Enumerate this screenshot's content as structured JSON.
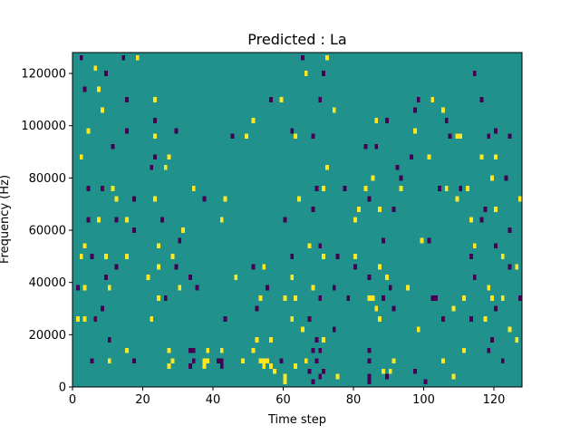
{
  "chart_data": {
    "type": "heatmap",
    "title": "Predicted : La",
    "xlabel": "Time step",
    "ylabel": "Frequency (Hz)",
    "xlim": [
      0,
      128
    ],
    "ylim": [
      0,
      128000
    ],
    "x_ticks": [
      0,
      20,
      40,
      60,
      80,
      100,
      120
    ],
    "y_ticks": [
      0,
      20000,
      40000,
      60000,
      80000,
      100000,
      120000
    ],
    "x_tick_labels": [
      "0",
      "20",
      "40",
      "60",
      "80",
      "100",
      "120"
    ],
    "y_tick_labels": [
      "0",
      "20000",
      "40000",
      "60000",
      "80000",
      "100000",
      "120000"
    ],
    "grid": false,
    "colormap": "viridis",
    "colors": {
      "background": "#21918c",
      "high": "#fde725",
      "low": "#440154"
    },
    "cell_width": 1,
    "cell_height": 2000,
    "value_levels": {
      "low": -1,
      "background": 0,
      "high": 1
    },
    "cells": [
      {
        "x": 2,
        "y": 125000,
        "v": -1
      },
      {
        "x": 14,
        "y": 125000,
        "v": -1
      },
      {
        "x": 18,
        "y": 125000,
        "v": 1
      },
      {
        "x": 65,
        "y": 125000,
        "v": -1
      },
      {
        "x": 72,
        "y": 125000,
        "v": 1
      },
      {
        "x": 6,
        "y": 121000,
        "v": 1
      },
      {
        "x": 9,
        "y": 119000,
        "v": -1
      },
      {
        "x": 66,
        "y": 119000,
        "v": 1
      },
      {
        "x": 71,
        "y": 119000,
        "v": -1
      },
      {
        "x": 114,
        "y": 119000,
        "v": -1
      },
      {
        "x": 3,
        "y": 113000,
        "v": -1
      },
      {
        "x": 7,
        "y": 113000,
        "v": 1
      },
      {
        "x": 15,
        "y": 109000,
        "v": -1
      },
      {
        "x": 23,
        "y": 109000,
        "v": 1
      },
      {
        "x": 56,
        "y": 109000,
        "v": -1
      },
      {
        "x": 59,
        "y": 109000,
        "v": 1
      },
      {
        "x": 70,
        "y": 109000,
        "v": -1
      },
      {
        "x": 98,
        "y": 109000,
        "v": -1
      },
      {
        "x": 102,
        "y": 109000,
        "v": 1
      },
      {
        "x": 116,
        "y": 109000,
        "v": -1
      },
      {
        "x": 8,
        "y": 105000,
        "v": 1
      },
      {
        "x": 74,
        "y": 105000,
        "v": 1
      },
      {
        "x": 97,
        "y": 105000,
        "v": -1
      },
      {
        "x": 105,
        "y": 105000,
        "v": 1
      },
      {
        "x": 23,
        "y": 101000,
        "v": -1
      },
      {
        "x": 51,
        "y": 101000,
        "v": 1
      },
      {
        "x": 86,
        "y": 101000,
        "v": 1
      },
      {
        "x": 89,
        "y": 101000,
        "v": -1
      },
      {
        "x": 106,
        "y": 101000,
        "v": -1
      },
      {
        "x": 4,
        "y": 97000,
        "v": 1
      },
      {
        "x": 15,
        "y": 97000,
        "v": -1
      },
      {
        "x": 29,
        "y": 97000,
        "v": -1
      },
      {
        "x": 62,
        "y": 97000,
        "v": -1
      },
      {
        "x": 97,
        "y": 97000,
        "v": 1
      },
      {
        "x": 120,
        "y": 97000,
        "v": -1
      },
      {
        "x": 23,
        "y": 95000,
        "v": 1
      },
      {
        "x": 45,
        "y": 95000,
        "v": -1
      },
      {
        "x": 49,
        "y": 95000,
        "v": 1
      },
      {
        "x": 63,
        "y": 95000,
        "v": 1
      },
      {
        "x": 68,
        "y": 95000,
        "v": -1
      },
      {
        "x": 107,
        "y": 95000,
        "v": -1
      },
      {
        "x": 109,
        "y": 95000,
        "v": 1
      },
      {
        "x": 110,
        "y": 95000,
        "v": 1
      },
      {
        "x": 118,
        "y": 95000,
        "v": -1
      },
      {
        "x": 124,
        "y": 95000,
        "v": -1
      },
      {
        "x": 11,
        "y": 91000,
        "v": -1
      },
      {
        "x": 83,
        "y": 91000,
        "v": -1
      },
      {
        "x": 86,
        "y": 91000,
        "v": -1
      },
      {
        "x": 2,
        "y": 87000,
        "v": 1
      },
      {
        "x": 23,
        "y": 87000,
        "v": -1
      },
      {
        "x": 27,
        "y": 87000,
        "v": 1
      },
      {
        "x": 96,
        "y": 87000,
        "v": -1
      },
      {
        "x": 101,
        "y": 87000,
        "v": 1
      },
      {
        "x": 116,
        "y": 87000,
        "v": 1
      },
      {
        "x": 120,
        "y": 87000,
        "v": 1
      },
      {
        "x": 22,
        "y": 83000,
        "v": -1
      },
      {
        "x": 26,
        "y": 83000,
        "v": 1
      },
      {
        "x": 72,
        "y": 83000,
        "v": 1
      },
      {
        "x": 92,
        "y": 83000,
        "v": -1
      },
      {
        "x": 85,
        "y": 79000,
        "v": 1
      },
      {
        "x": 93,
        "y": 79000,
        "v": -1
      },
      {
        "x": 119,
        "y": 79000,
        "v": 1
      },
      {
        "x": 123,
        "y": 79000,
        "v": -1
      },
      {
        "x": 4,
        "y": 75000,
        "v": -1
      },
      {
        "x": 8,
        "y": 75000,
        "v": -1
      },
      {
        "x": 11,
        "y": 75000,
        "v": 1
      },
      {
        "x": 34,
        "y": 75000,
        "v": 1
      },
      {
        "x": 69,
        "y": 75000,
        "v": -1
      },
      {
        "x": 71,
        "y": 75000,
        "v": 1
      },
      {
        "x": 77,
        "y": 75000,
        "v": -1
      },
      {
        "x": 83,
        "y": 75000,
        "v": 1
      },
      {
        "x": 93,
        "y": 75000,
        "v": 1
      },
      {
        "x": 104,
        "y": 75000,
        "v": -1
      },
      {
        "x": 106,
        "y": 75000,
        "v": 1
      },
      {
        "x": 110,
        "y": 75000,
        "v": -1
      },
      {
        "x": 112,
        "y": 75000,
        "v": 1
      },
      {
        "x": 12,
        "y": 71000,
        "v": 1
      },
      {
        "x": 17,
        "y": 71000,
        "v": -1
      },
      {
        "x": 23,
        "y": 71000,
        "v": 1
      },
      {
        "x": 37,
        "y": 71000,
        "v": -1
      },
      {
        "x": 43,
        "y": 71000,
        "v": 1
      },
      {
        "x": 64,
        "y": 71000,
        "v": 1
      },
      {
        "x": 84,
        "y": 71000,
        "v": -1
      },
      {
        "x": 109,
        "y": 71000,
        "v": 1
      },
      {
        "x": 127,
        "y": 71000,
        "v": 1
      },
      {
        "x": 68,
        "y": 67000,
        "v": -1
      },
      {
        "x": 81,
        "y": 67000,
        "v": 1
      },
      {
        "x": 87,
        "y": 67000,
        "v": 1
      },
      {
        "x": 91,
        "y": 67000,
        "v": -1
      },
      {
        "x": 117,
        "y": 67000,
        "v": -1
      },
      {
        "x": 120,
        "y": 67000,
        "v": 1
      },
      {
        "x": 4,
        "y": 63000,
        "v": -1
      },
      {
        "x": 7,
        "y": 63000,
        "v": 1
      },
      {
        "x": 12,
        "y": 63000,
        "v": -1
      },
      {
        "x": 15,
        "y": 63000,
        "v": 1
      },
      {
        "x": 25,
        "y": 63000,
        "v": -1
      },
      {
        "x": 42,
        "y": 63000,
        "v": 1
      },
      {
        "x": 60,
        "y": 63000,
        "v": -1
      },
      {
        "x": 80,
        "y": 63000,
        "v": 1
      },
      {
        "x": 113,
        "y": 63000,
        "v": 1
      },
      {
        "x": 116,
        "y": 63000,
        "v": -1
      },
      {
        "x": 17,
        "y": 59000,
        "v": -1
      },
      {
        "x": 31,
        "y": 59000,
        "v": 1
      },
      {
        "x": 124,
        "y": 59000,
        "v": -1
      },
      {
        "x": 30,
        "y": 55000,
        "v": -1
      },
      {
        "x": 88,
        "y": 55000,
        "v": -1
      },
      {
        "x": 99,
        "y": 55000,
        "v": 1
      },
      {
        "x": 101,
        "y": 55000,
        "v": -1
      },
      {
        "x": 3,
        "y": 53000,
        "v": 1
      },
      {
        "x": 24,
        "y": 53000,
        "v": 1
      },
      {
        "x": 67,
        "y": 53000,
        "v": 1
      },
      {
        "x": 70,
        "y": 53000,
        "v": -1
      },
      {
        "x": 114,
        "y": 53000,
        "v": 1
      },
      {
        "x": 120,
        "y": 53000,
        "v": -1
      },
      {
        "x": 2,
        "y": 49000,
        "v": 1
      },
      {
        "x": 5,
        "y": 49000,
        "v": -1
      },
      {
        "x": 9,
        "y": 49000,
        "v": 1
      },
      {
        "x": 15,
        "y": 49000,
        "v": 1
      },
      {
        "x": 28,
        "y": 49000,
        "v": 1
      },
      {
        "x": 62,
        "y": 49000,
        "v": -1
      },
      {
        "x": 71,
        "y": 49000,
        "v": 1
      },
      {
        "x": 75,
        "y": 49000,
        "v": -1
      },
      {
        "x": 80,
        "y": 49000,
        "v": 1
      },
      {
        "x": 113,
        "y": 49000,
        "v": -1
      },
      {
        "x": 122,
        "y": 49000,
        "v": 1
      },
      {
        "x": 12,
        "y": 45000,
        "v": -1
      },
      {
        "x": 24,
        "y": 45000,
        "v": 1
      },
      {
        "x": 29,
        "y": 45000,
        "v": -1
      },
      {
        "x": 51,
        "y": 45000,
        "v": -1
      },
      {
        "x": 54,
        "y": 45000,
        "v": 1
      },
      {
        "x": 80,
        "y": 45000,
        "v": -1
      },
      {
        "x": 87,
        "y": 45000,
        "v": 1
      },
      {
        "x": 124,
        "y": 45000,
        "v": -1
      },
      {
        "x": 126,
        "y": 45000,
        "v": 1
      },
      {
        "x": 9,
        "y": 41000,
        "v": -1
      },
      {
        "x": 21,
        "y": 41000,
        "v": 1
      },
      {
        "x": 33,
        "y": 41000,
        "v": -1
      },
      {
        "x": 46,
        "y": 41000,
        "v": 1
      },
      {
        "x": 62,
        "y": 41000,
        "v": 1
      },
      {
        "x": 84,
        "y": 41000,
        "v": -1
      },
      {
        "x": 89,
        "y": 41000,
        "v": 1
      },
      {
        "x": 114,
        "y": 41000,
        "v": -1
      },
      {
        "x": 1,
        "y": 37000,
        "v": -1
      },
      {
        "x": 3,
        "y": 37000,
        "v": 1
      },
      {
        "x": 10,
        "y": 37000,
        "v": 1
      },
      {
        "x": 30,
        "y": 37000,
        "v": 1
      },
      {
        "x": 35,
        "y": 37000,
        "v": -1
      },
      {
        "x": 55,
        "y": 37000,
        "v": -1
      },
      {
        "x": 68,
        "y": 37000,
        "v": 1
      },
      {
        "x": 74,
        "y": 37000,
        "v": -1
      },
      {
        "x": 90,
        "y": 37000,
        "v": -1
      },
      {
        "x": 95,
        "y": 37000,
        "v": 1
      },
      {
        "x": 118,
        "y": 37000,
        "v": 1
      },
      {
        "x": 24,
        "y": 33000,
        "v": 1
      },
      {
        "x": 26,
        "y": 33000,
        "v": -1
      },
      {
        "x": 53,
        "y": 33000,
        "v": 1
      },
      {
        "x": 60,
        "y": 33000,
        "v": 1
      },
      {
        "x": 63,
        "y": 33000,
        "v": 1
      },
      {
        "x": 70,
        "y": 33000,
        "v": -1
      },
      {
        "x": 78,
        "y": 33000,
        "v": -1
      },
      {
        "x": 84,
        "y": 33000,
        "v": 1
      },
      {
        "x": 85,
        "y": 33000,
        "v": 1
      },
      {
        "x": 88,
        "y": 33000,
        "v": -1
      },
      {
        "x": 102,
        "y": 33000,
        "v": -1
      },
      {
        "x": 103,
        "y": 33000,
        "v": -1
      },
      {
        "x": 111,
        "y": 33000,
        "v": 1
      },
      {
        "x": 119,
        "y": 33000,
        "v": 1
      },
      {
        "x": 122,
        "y": 33000,
        "v": 1
      },
      {
        "x": 127,
        "y": 33000,
        "v": -1
      },
      {
        "x": 8,
        "y": 29000,
        "v": -1
      },
      {
        "x": 52,
        "y": 29000,
        "v": -1
      },
      {
        "x": 86,
        "y": 29000,
        "v": 1
      },
      {
        "x": 91,
        "y": 29000,
        "v": -1
      },
      {
        "x": 108,
        "y": 29000,
        "v": 1
      },
      {
        "x": 120,
        "y": 29000,
        "v": -1
      },
      {
        "x": 1,
        "y": 25000,
        "v": 1
      },
      {
        "x": 3,
        "y": 25000,
        "v": 1
      },
      {
        "x": 6,
        "y": 25000,
        "v": -1
      },
      {
        "x": 22,
        "y": 25000,
        "v": 1
      },
      {
        "x": 43,
        "y": 25000,
        "v": -1
      },
      {
        "x": 62,
        "y": 25000,
        "v": 1
      },
      {
        "x": 67,
        "y": 25000,
        "v": -1
      },
      {
        "x": 87,
        "y": 25000,
        "v": 1
      },
      {
        "x": 105,
        "y": 25000,
        "v": -1
      },
      {
        "x": 113,
        "y": 25000,
        "v": -1
      },
      {
        "x": 117,
        "y": 25000,
        "v": 1
      },
      {
        "x": 65,
        "y": 21000,
        "v": 1
      },
      {
        "x": 74,
        "y": 21000,
        "v": -1
      },
      {
        "x": 98,
        "y": 21000,
        "v": 1
      },
      {
        "x": 124,
        "y": 21000,
        "v": 1
      },
      {
        "x": 10,
        "y": 17000,
        "v": -1
      },
      {
        "x": 52,
        "y": 17000,
        "v": 1
      },
      {
        "x": 56,
        "y": 17000,
        "v": 1
      },
      {
        "x": 69,
        "y": 17000,
        "v": -1
      },
      {
        "x": 71,
        "y": 17000,
        "v": 1
      },
      {
        "x": 119,
        "y": 17000,
        "v": -1
      },
      {
        "x": 126,
        "y": 17000,
        "v": 1
      },
      {
        "x": 15,
        "y": 13000,
        "v": 1
      },
      {
        "x": 27,
        "y": 13000,
        "v": 1
      },
      {
        "x": 33,
        "y": 13000,
        "v": -1
      },
      {
        "x": 34,
        "y": 13000,
        "v": -1
      },
      {
        "x": 38,
        "y": 13000,
        "v": 1
      },
      {
        "x": 42,
        "y": 13000,
        "v": 1
      },
      {
        "x": 51,
        "y": 13000,
        "v": 1
      },
      {
        "x": 68,
        "y": 13000,
        "v": -1
      },
      {
        "x": 70,
        "y": 13000,
        "v": -1
      },
      {
        "x": 84,
        "y": 13000,
        "v": -1
      },
      {
        "x": 111,
        "y": 13000,
        "v": 1
      },
      {
        "x": 118,
        "y": 13000,
        "v": -1
      },
      {
        "x": 5,
        "y": 9000,
        "v": -1
      },
      {
        "x": 10,
        "y": 9000,
        "v": 1
      },
      {
        "x": 17,
        "y": 9000,
        "v": -1
      },
      {
        "x": 28,
        "y": 9000,
        "v": 1
      },
      {
        "x": 34,
        "y": 9000,
        "v": -1
      },
      {
        "x": 37,
        "y": 9000,
        "v": 1
      },
      {
        "x": 38,
        "y": 9000,
        "v": 1
      },
      {
        "x": 41,
        "y": 9000,
        "v": -1
      },
      {
        "x": 42,
        "y": 9000,
        "v": -1
      },
      {
        "x": 48,
        "y": 9000,
        "v": 1
      },
      {
        "x": 53,
        "y": 9000,
        "v": 1
      },
      {
        "x": 54,
        "y": 9000,
        "v": 1
      },
      {
        "x": 55,
        "y": 9000,
        "v": 1
      },
      {
        "x": 59,
        "y": 9000,
        "v": -1
      },
      {
        "x": 66,
        "y": 9000,
        "v": 1
      },
      {
        "x": 69,
        "y": 9000,
        "v": -1
      },
      {
        "x": 84,
        "y": 9000,
        "v": -1
      },
      {
        "x": 91,
        "y": 9000,
        "v": 1
      },
      {
        "x": 105,
        "y": 9000,
        "v": 1
      },
      {
        "x": 122,
        "y": 9000,
        "v": -1
      },
      {
        "x": 27,
        "y": 7000,
        "v": 1
      },
      {
        "x": 33,
        "y": 7000,
        "v": -1
      },
      {
        "x": 37,
        "y": 7000,
        "v": 1
      },
      {
        "x": 42,
        "y": 7000,
        "v": -1
      },
      {
        "x": 54,
        "y": 7000,
        "v": 1
      },
      {
        "x": 56,
        "y": 7000,
        "v": 1
      },
      {
        "x": 63,
        "y": 7000,
        "v": 1
      },
      {
        "x": 57,
        "y": 5000,
        "v": 1
      },
      {
        "x": 67,
        "y": 5000,
        "v": -1
      },
      {
        "x": 71,
        "y": 5000,
        "v": -1
      },
      {
        "x": 88,
        "y": 5000,
        "v": 1
      },
      {
        "x": 90,
        "y": 5000,
        "v": 1
      },
      {
        "x": 97,
        "y": 5000,
        "v": -1
      },
      {
        "x": 60,
        "y": 3000,
        "v": 1
      },
      {
        "x": 70,
        "y": 3000,
        "v": -1
      },
      {
        "x": 75,
        "y": 3000,
        "v": 1
      },
      {
        "x": 84,
        "y": 3000,
        "v": -1
      },
      {
        "x": 89,
        "y": 3000,
        "v": -1
      },
      {
        "x": 108,
        "y": 3000,
        "v": 1
      },
      {
        "x": 60,
        "y": 1000,
        "v": 1
      },
      {
        "x": 68,
        "y": 1000,
        "v": -1
      },
      {
        "x": 84,
        "y": 1000,
        "v": -1
      },
      {
        "x": 100,
        "y": 1000,
        "v": -1
      }
    ]
  }
}
